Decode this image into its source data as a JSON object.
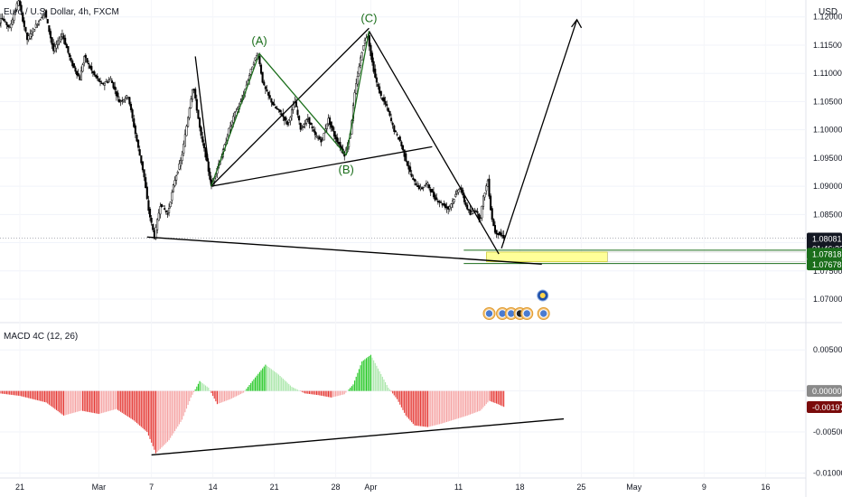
{
  "chart_data": {
    "type": "candlestick",
    "title": "Euro / U.S. Dollar, 4h, FXCM",
    "currency": "USD",
    "price_axis": {
      "ylim": [
        1.066,
        1.123
      ],
      "ticks": [
        "1.12000",
        "1.11500",
        "1.11000",
        "1.10500",
        "1.10000",
        "1.09500",
        "1.09000",
        "1.08500",
        "1.08000",
        "1.07500",
        "1.07000"
      ]
    },
    "date_axis": {
      "labels": [
        {
          "text": "21",
          "day": -9
        },
        {
          "text": "Mar",
          "day": 0
        },
        {
          "text": "7",
          "day": 6
        },
        {
          "text": "14",
          "day": 13
        },
        {
          "text": "21",
          "day": 20
        },
        {
          "text": "28",
          "day": 27
        },
        {
          "text": "Apr",
          "day": 31
        },
        {
          "text": "11",
          "day": 41
        },
        {
          "text": "18",
          "day": 48
        },
        {
          "text": "25",
          "day": 55
        },
        {
          "text": "May",
          "day": 61
        },
        {
          "text": "9",
          "day": 69
        },
        {
          "text": "16",
          "day": 76
        }
      ]
    },
    "price_path": [
      [
        -12.0,
        1.115
      ],
      [
        -11.0,
        1.12
      ],
      [
        -10.0,
        1.118
      ],
      [
        -9.0,
        1.123
      ],
      [
        -8.0,
        1.116
      ],
      [
        -7.0,
        1.1185
      ],
      [
        -6.0,
        1.121
      ],
      [
        -5.0,
        1.114
      ],
      [
        -4.0,
        1.117
      ],
      [
        -3.0,
        1.112
      ],
      [
        -2.0,
        1.109
      ],
      [
        -1.5,
        1.113
      ],
      [
        -0.5,
        1.11
      ],
      [
        0.5,
        1.108
      ],
      [
        1.5,
        1.109
      ],
      [
        2.5,
        1.105
      ],
      [
        3.5,
        1.106
      ],
      [
        4.5,
        1.098
      ],
      [
        5.3,
        1.092
      ],
      [
        5.8,
        1.086
      ],
      [
        6.5,
        1.081
      ],
      [
        7.2,
        1.087
      ],
      [
        8.0,
        1.085
      ],
      [
        8.8,
        1.091
      ],
      [
        9.6,
        1.095
      ],
      [
        10.3,
        1.102
      ],
      [
        10.9,
        1.108
      ],
      [
        11.3,
        1.104
      ],
      [
        11.8,
        1.099
      ],
      [
        12.4,
        1.095
      ],
      [
        13.0,
        1.09
      ],
      [
        13.6,
        1.093
      ],
      [
        14.3,
        1.096
      ],
      [
        15.0,
        1.1
      ],
      [
        15.7,
        1.103
      ],
      [
        16.4,
        1.105
      ],
      [
        17.2,
        1.109
      ],
      [
        17.8,
        1.112
      ],
      [
        18.3,
        1.1135
      ],
      [
        18.9,
        1.108
      ],
      [
        19.5,
        1.106
      ],
      [
        20.2,
        1.104
      ],
      [
        20.9,
        1.103
      ],
      [
        21.7,
        1.101
      ],
      [
        22.5,
        1.105
      ],
      [
        23.2,
        1.1
      ],
      [
        24.0,
        1.102
      ],
      [
        24.8,
        1.099
      ],
      [
        25.6,
        1.098
      ],
      [
        26.3,
        1.102
      ],
      [
        27.0,
        1.099
      ],
      [
        27.7,
        1.097
      ],
      [
        28.2,
        1.0955
      ],
      [
        28.8,
        1.099
      ],
      [
        29.3,
        1.106
      ],
      [
        29.8,
        1.111
      ],
      [
        30.3,
        1.115
      ],
      [
        30.8,
        1.117
      ],
      [
        31.2,
        1.113
      ],
      [
        31.7,
        1.109
      ],
      [
        32.3,
        1.106
      ],
      [
        33.0,
        1.104
      ],
      [
        33.8,
        1.1
      ],
      [
        34.5,
        1.098
      ],
      [
        35.3,
        1.094
      ],
      [
        36.0,
        1.091
      ],
      [
        36.8,
        1.0895
      ],
      [
        37.6,
        1.0905
      ],
      [
        38.4,
        1.088
      ],
      [
        39.2,
        1.087
      ],
      [
        40.0,
        1.086
      ],
      [
        40.7,
        1.088
      ],
      [
        41.3,
        1.09
      ],
      [
        41.9,
        1.087
      ],
      [
        42.5,
        1.085
      ],
      [
        43.1,
        1.086
      ],
      [
        43.6,
        1.084
      ],
      [
        44.0,
        1.088
      ],
      [
        44.5,
        1.091
      ],
      [
        44.9,
        1.085
      ],
      [
        45.3,
        1.082
      ],
      [
        45.8,
        1.0815
      ],
      [
        46.3,
        1.081
      ]
    ],
    "current_price": {
      "value": "1.08081",
      "countdown": "01:46:22",
      "y": 1.08081
    },
    "zone_levels": [
      {
        "value": "1.07818",
        "y": 1.07818,
        "color": "#1b6e1b"
      },
      {
        "value": "1.07678",
        "y": 1.07678,
        "color": "#1b6e1b"
      }
    ],
    "wave_labels": [
      {
        "text": "(A)",
        "day": 18.3,
        "y": 1.1135
      },
      {
        "text": "(B)",
        "day": 28.2,
        "y": 1.0955
      },
      {
        "text": "(C)",
        "day": 30.8,
        "y": 1.1175
      }
    ],
    "macd": {
      "name": "MACD 4C (12, 26)",
      "ylim": [
        -0.0105,
        0.008
      ],
      "ticks": [
        "0.00500",
        "0.00000",
        "-0.00500",
        "-0.01000"
      ],
      "current": {
        "value": "0.00000",
        "y": 0.0
      },
      "signal": {
        "value": "-0.00197",
        "y": -0.00197
      },
      "histogram": [
        [
          -12,
          -0.0002
        ],
        [
          -9,
          -0.0006
        ],
        [
          -6,
          -0.0014
        ],
        [
          -4,
          -0.003
        ],
        [
          -2,
          -0.0024
        ],
        [
          0,
          -0.0028
        ],
        [
          2,
          -0.0022
        ],
        [
          4,
          -0.0036
        ],
        [
          5.5,
          -0.005
        ],
        [
          6.5,
          -0.0076
        ],
        [
          8,
          -0.006
        ],
        [
          9.5,
          -0.0035
        ],
        [
          10.5,
          -0.0008
        ],
        [
          11.5,
          0.0012
        ],
        [
          12.5,
          0.0004
        ],
        [
          13.5,
          -0.0016
        ],
        [
          15,
          -0.001
        ],
        [
          16.5,
          -0.0002
        ],
        [
          17.5,
          0.0012
        ],
        [
          19,
          0.0032
        ],
        [
          20.5,
          0.002
        ],
        [
          22,
          0.0005
        ],
        [
          23.5,
          -0.0003
        ],
        [
          25,
          -0.0005
        ],
        [
          26.5,
          -0.0008
        ],
        [
          28,
          -0.0004
        ],
        [
          29,
          0.0008
        ],
        [
          30,
          0.0036
        ],
        [
          31,
          0.0044
        ],
        [
          32,
          0.0024
        ],
        [
          33,
          0.0004
        ],
        [
          34,
          -0.001
        ],
        [
          35,
          -0.003
        ],
        [
          36,
          -0.0042
        ],
        [
          37.5,
          -0.0044
        ],
        [
          39,
          -0.004
        ],
        [
          40.5,
          -0.0035
        ],
        [
          42,
          -0.003
        ],
        [
          43.5,
          -0.0024
        ],
        [
          44.5,
          -0.0012
        ],
        [
          45.5,
          -0.0016
        ],
        [
          46.3,
          -0.002
        ]
      ]
    },
    "grid": true,
    "legend": "top-left"
  }
}
